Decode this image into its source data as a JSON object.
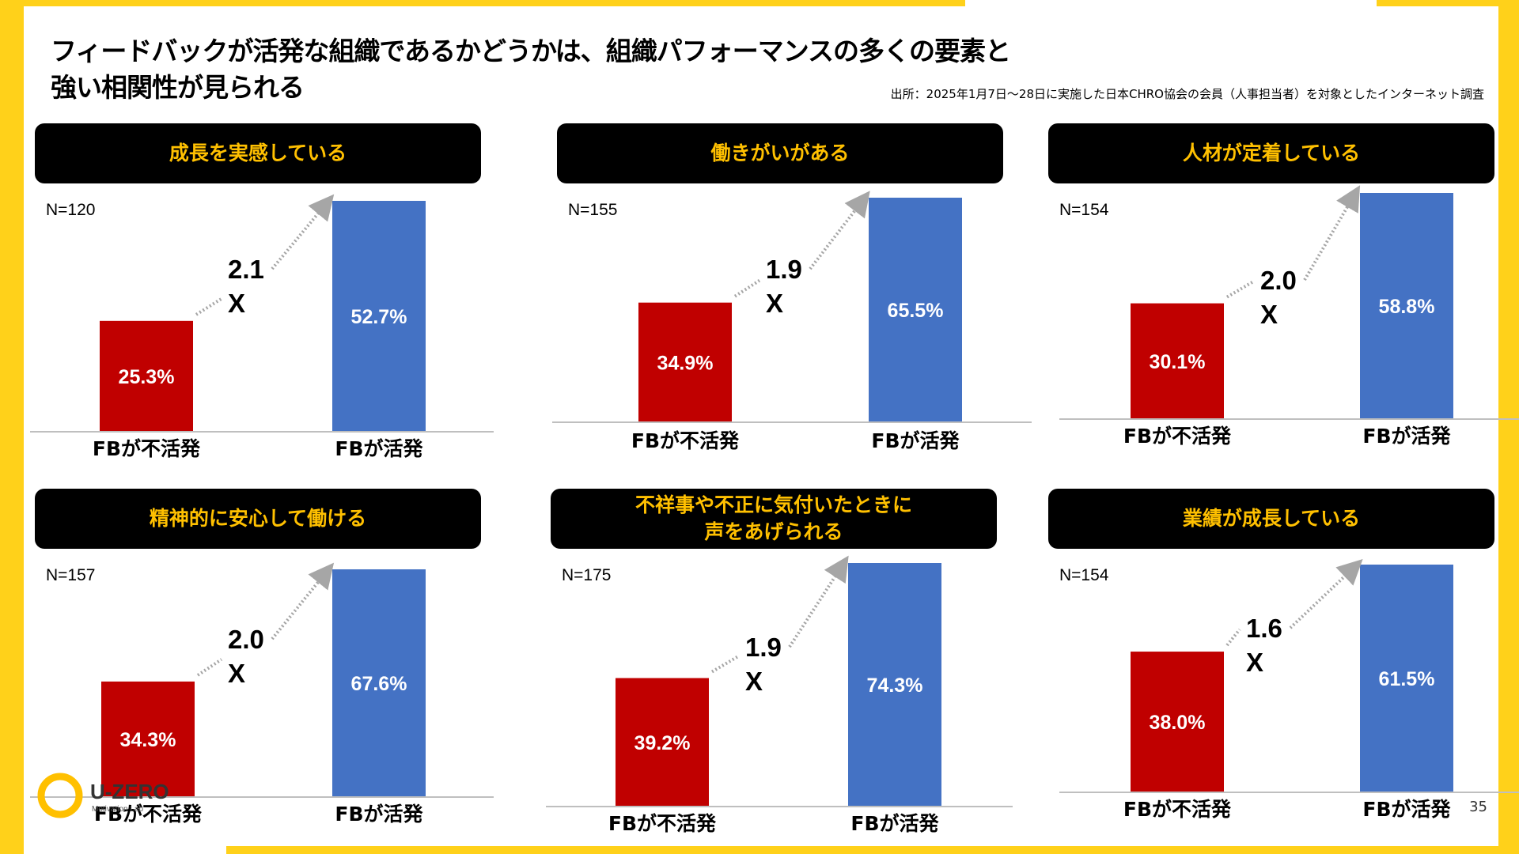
{
  "slide": {
    "title_lines": [
      "フィードバックが活発な組織であるかどうかは、組織パフォーマンスの多くの要素と",
      "強い相関性が見られる"
    ],
    "source": "出所：2025年1月7日〜28日に実施した日本CHRO協会の会員（人事担当者）を対象としたインターネット調査",
    "page_number": "35",
    "logo_text": "U-ZERO",
    "logo_subtext": "Motivation Lab",
    "colors": {
      "inactive": "#C00000",
      "active": "#4472C4",
      "header_text": "#FFC000",
      "accent": "#FFD11A"
    }
  },
  "chart_data": [
    {
      "type": "bar",
      "title": "成長を実感している",
      "n_label": "N=120",
      "categories": [
        "FBが不活発",
        "FBが活発"
      ],
      "values": [
        25.3,
        52.7
      ],
      "labels": [
        "25.3%",
        "52.7%"
      ],
      "multiplier": [
        "2.1",
        "X"
      ],
      "ylim": [
        0,
        55
      ]
    },
    {
      "type": "bar",
      "title": "働きがいがある",
      "n_label": "N=155",
      "categories": [
        "FBが不活発",
        "FBが活発"
      ],
      "values": [
        34.9,
        65.5
      ],
      "labels": [
        "34.9%",
        "65.5%"
      ],
      "multiplier": [
        "1.9",
        "X"
      ],
      "ylim": [
        0,
        70
      ]
    },
    {
      "type": "bar",
      "title": "人材が定着している",
      "n_label": "N=154",
      "categories": [
        "FBが不活発",
        "FBが活発"
      ],
      "values": [
        30.1,
        58.8
      ],
      "labels": [
        "30.1%",
        "58.8%"
      ],
      "multiplier": [
        "2.0",
        "X"
      ],
      "ylim": [
        0,
        60
      ]
    },
    {
      "type": "bar",
      "title": "精神的に安心して働ける",
      "n_label": "N=157",
      "categories": [
        "FBが不活発",
        "FBが活発"
      ],
      "values": [
        34.3,
        67.6
      ],
      "labels": [
        "34.3%",
        "67.6%"
      ],
      "multiplier": [
        "2.0",
        "X"
      ],
      "ylim": [
        0,
        70
      ]
    },
    {
      "type": "bar",
      "title": "不祥事や不正に気付いたときに|声をあげられる",
      "n_label": "N=175",
      "categories": [
        "FBが不活発",
        "FBが活発"
      ],
      "values": [
        39.2,
        74.3
      ],
      "labels": [
        "39.2%",
        "74.3%"
      ],
      "multiplier": [
        "1.9",
        "X"
      ],
      "ylim": [
        0,
        75
      ]
    },
    {
      "type": "bar",
      "title": "業績が成長している",
      "n_label": "N=154",
      "categories": [
        "FBが不活発",
        "FBが活発"
      ],
      "values": [
        38.0,
        61.5
      ],
      "labels": [
        "38.0%",
        "61.5%"
      ],
      "multiplier": [
        "1.6",
        "X"
      ],
      "ylim": [
        0,
        60
      ]
    }
  ]
}
